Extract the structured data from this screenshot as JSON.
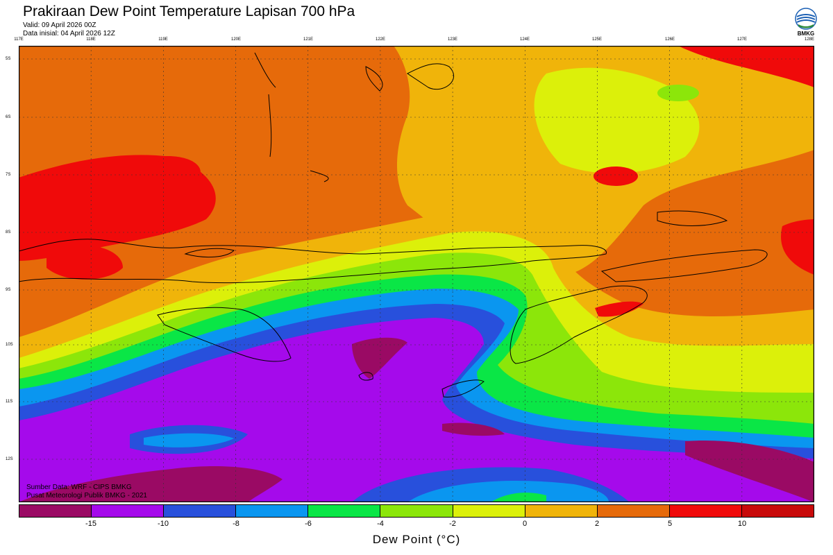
{
  "header": {
    "title": "Prakiraan Dew Point Temperature Lapisan 700 hPa",
    "valid": "Valid: 09 April 2026 00Z",
    "init": "Data inisial: 04 April 2026 12Z"
  },
  "logo": {
    "text": "BMKG",
    "icon": "bmkg-logo-icon"
  },
  "axes": {
    "longitudes": [
      "117E",
      "118E",
      "119E",
      "120E",
      "121E",
      "122E",
      "123E",
      "124E",
      "125E",
      "126E",
      "127E",
      "128E"
    ],
    "latitudes": [
      "5S",
      "6S",
      "7S",
      "8S",
      "9S",
      "10S",
      "11S",
      "12S"
    ],
    "lon_range": [
      117,
      128
    ],
    "lat_range": [
      -4.8,
      -12.75
    ]
  },
  "credits": {
    "line1": "Sumber Data: WRF - CIPS BMKG",
    "line2": "Pusat Meteorologi Publik BMKG - 2021"
  },
  "colorbar": {
    "title": "Dew Point (°C)",
    "ticks": [
      "-15",
      "-10",
      "-8",
      "-6",
      "-4",
      "-2",
      "0",
      "2",
      "5",
      "10"
    ],
    "colors": [
      "#9a0a64",
      "#a50aeb",
      "#2850dc",
      "#0a96f0",
      "#0ae646",
      "#8ce60a",
      "#dcf00a",
      "#f0b40a",
      "#e66a0a",
      "#f00a0a",
      "#c80a0a"
    ]
  },
  "field_colors": {
    "magenta": "#9a0a64",
    "purple": "#a50aeb",
    "blue": "#2850dc",
    "lightblue": "#0a96f0",
    "green": "#0ae646",
    "yellowgreen": "#8ce60a",
    "yellow": "#dcf00a",
    "amber": "#f0b40a",
    "orange": "#e66a0a",
    "red": "#f00a0a"
  }
}
